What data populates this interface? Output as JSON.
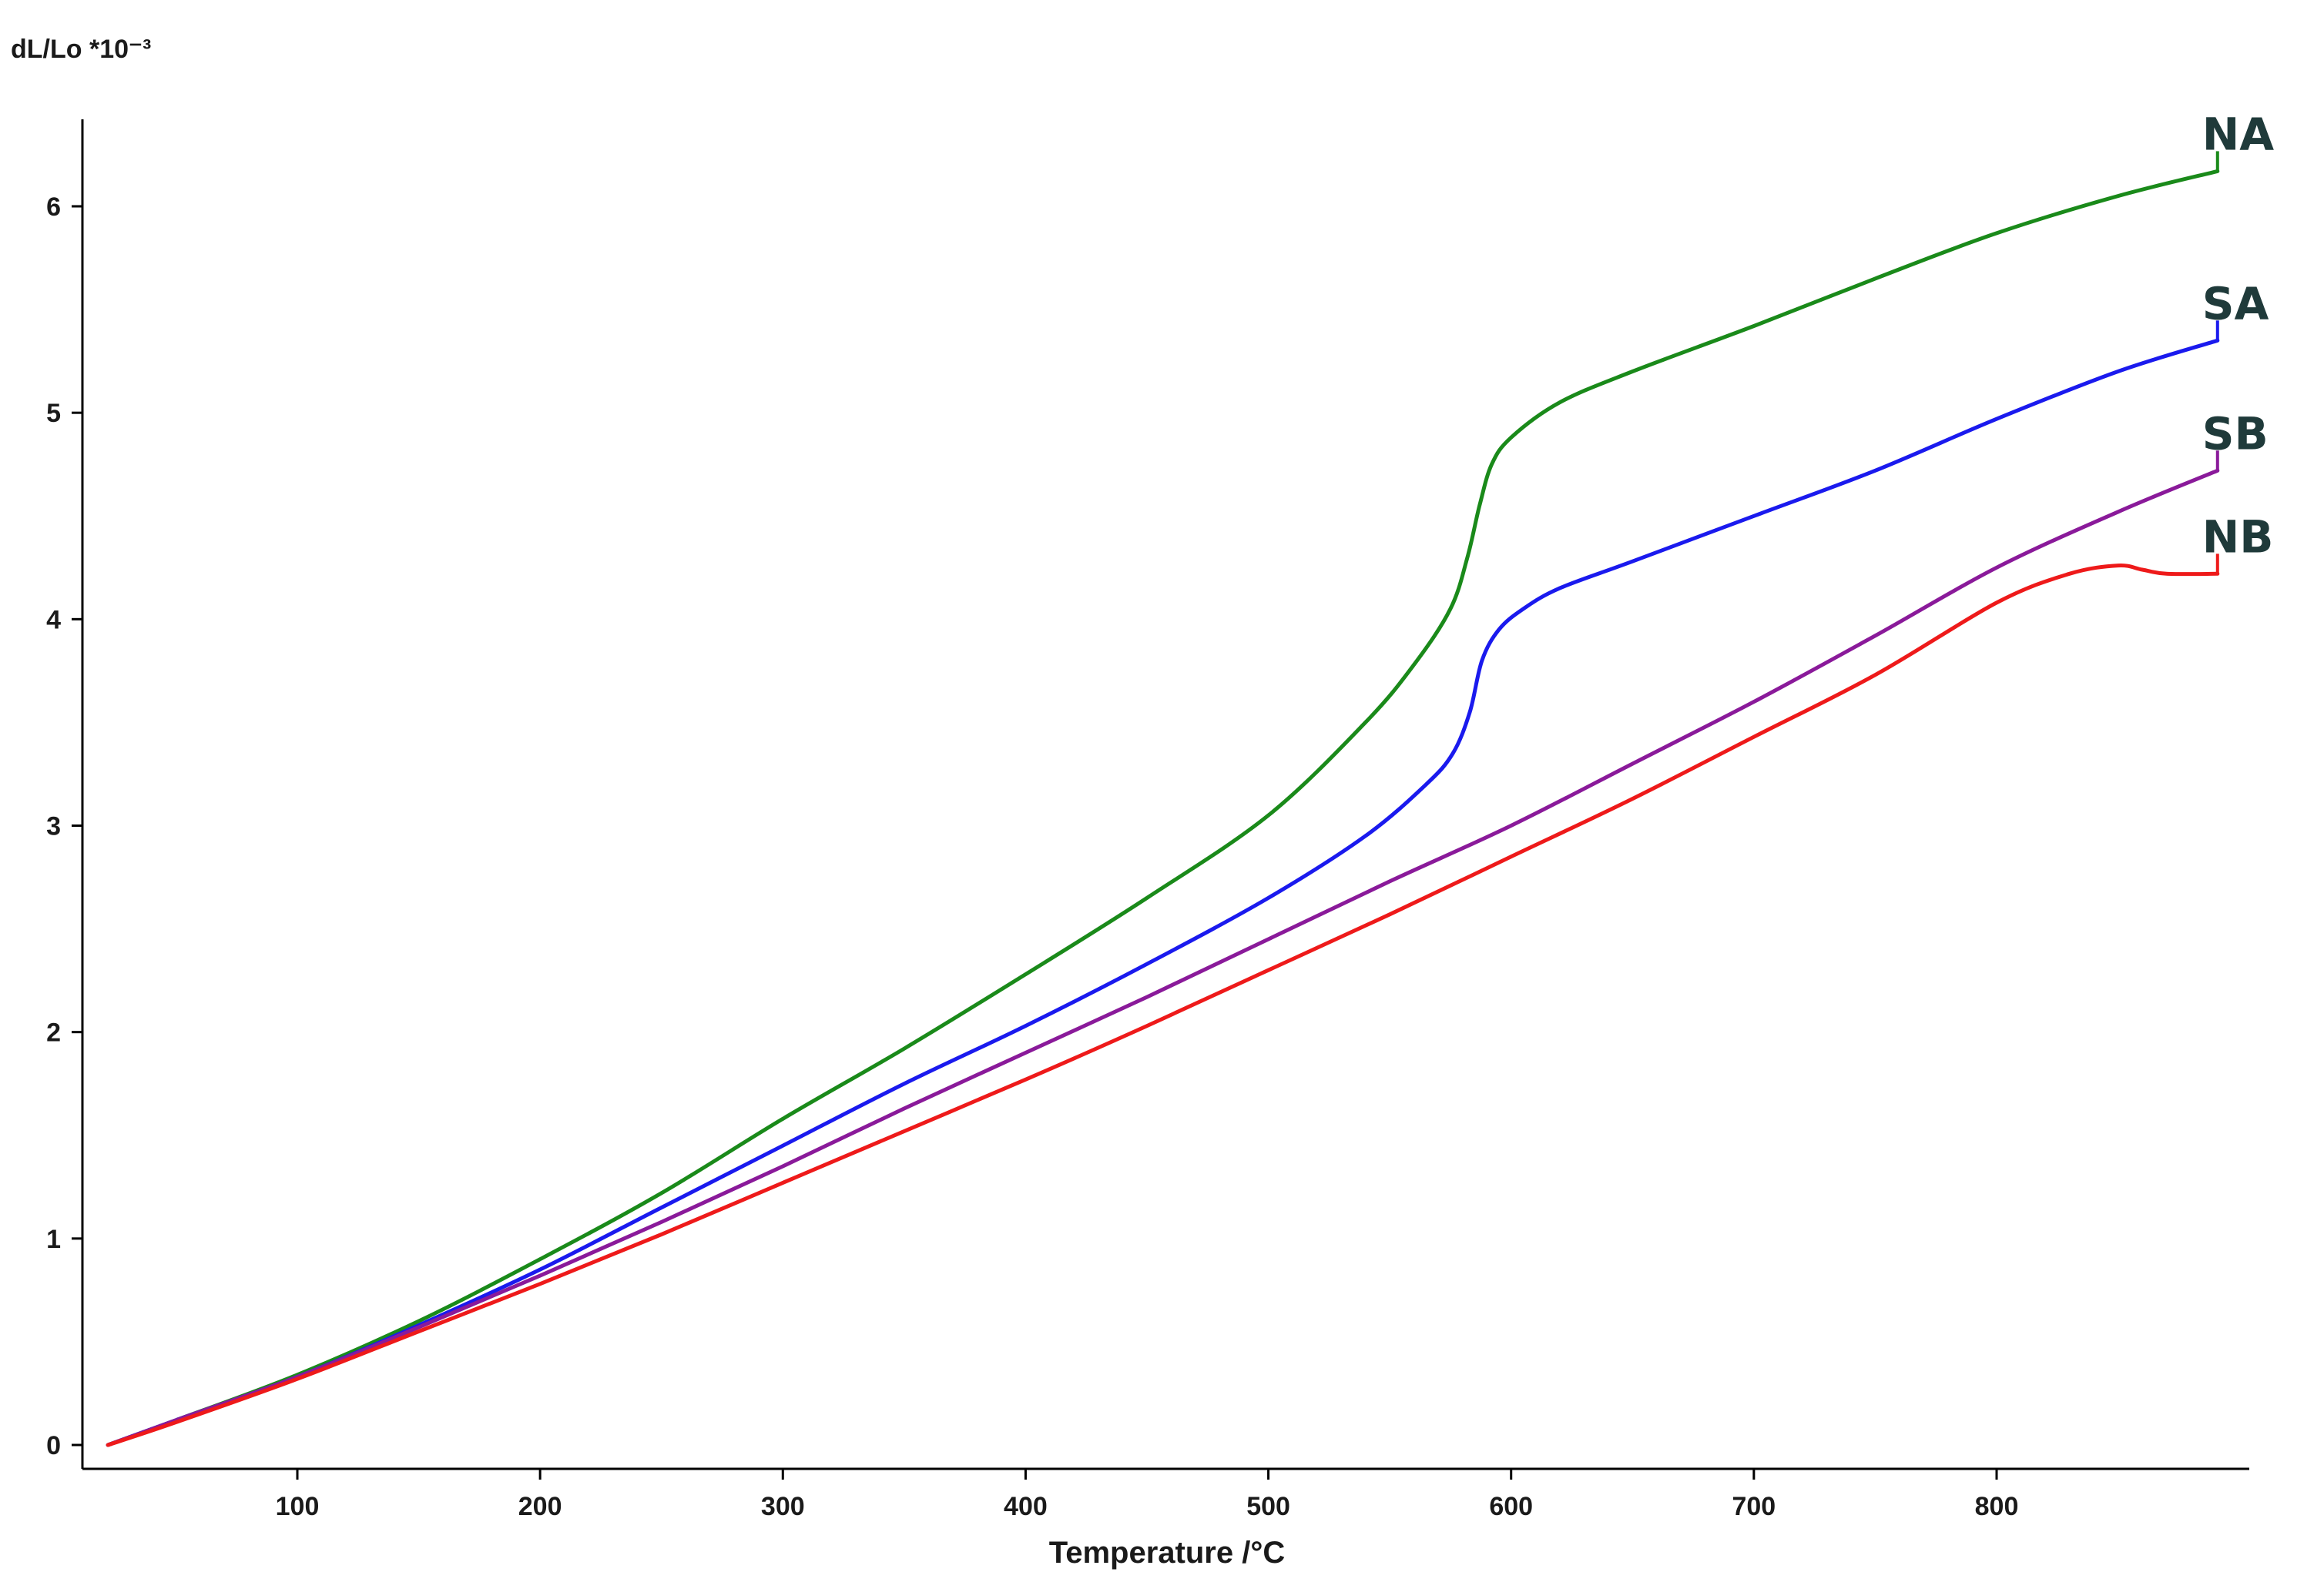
{
  "chart_data": {
    "type": "line",
    "title": "",
    "xlabel": "Temperature /°C",
    "ylabel": "dL/Lo *10⁻³",
    "xlim": [
      20,
      920
    ],
    "ylim": [
      -0.15,
      6.4
    ],
    "x_ticks": [
      100,
      200,
      300,
      400,
      500,
      600,
      700,
      800
    ],
    "x_tick_labels": [
      "100",
      "200",
      "300",
      "400",
      "500",
      "600",
      "700",
      "800"
    ],
    "y_ticks": [
      0,
      1,
      2,
      3,
      4,
      5,
      6
    ],
    "y_tick_labels": [
      "0",
      "1",
      "2",
      "3",
      "4",
      "5",
      "6"
    ],
    "grid": false,
    "legend": "inline labels at right end of lines",
    "series": [
      {
        "name": "NA",
        "color": "#1a8a1a",
        "x": [
          22,
          50,
          100,
          150,
          200,
          250,
          300,
          350,
          400,
          450,
          500,
          540,
          560,
          575,
          582,
          587,
          592,
          600,
          620,
          650,
          700,
          750,
          800,
          850,
          891
        ],
        "y": [
          0,
          0.12,
          0.34,
          0.6,
          0.9,
          1.22,
          1.58,
          1.92,
          2.28,
          2.65,
          3.05,
          3.5,
          3.78,
          4.05,
          4.3,
          4.55,
          4.75,
          4.88,
          5.05,
          5.2,
          5.42,
          5.65,
          5.87,
          6.05,
          6.17
        ]
      },
      {
        "name": "SA",
        "color": "#1a1aee",
        "x": [
          22,
          50,
          100,
          150,
          200,
          250,
          300,
          350,
          400,
          450,
          500,
          540,
          565,
          576,
          583,
          588,
          595,
          605,
          620,
          650,
          700,
          750,
          800,
          850,
          891
        ],
        "y": [
          0,
          0.12,
          0.33,
          0.58,
          0.85,
          1.15,
          1.45,
          1.75,
          2.03,
          2.33,
          2.65,
          2.95,
          3.2,
          3.35,
          3.55,
          3.8,
          3.95,
          4.05,
          4.15,
          4.28,
          4.5,
          4.72,
          4.97,
          5.2,
          5.35
        ]
      },
      {
        "name": "SB",
        "color": "#8a1a9a",
        "x": [
          22,
          50,
          100,
          150,
          200,
          250,
          300,
          350,
          400,
          450,
          500,
          550,
          600,
          650,
          700,
          750,
          800,
          850,
          891
        ],
        "y": [
          0,
          0.12,
          0.33,
          0.57,
          0.82,
          1.08,
          1.35,
          1.63,
          1.9,
          2.17,
          2.45,
          2.73,
          3.0,
          3.3,
          3.6,
          3.92,
          4.25,
          4.52,
          4.72
        ]
      },
      {
        "name": "NB",
        "color": "#ee1a1a",
        "x": [
          22,
          50,
          100,
          150,
          200,
          250,
          300,
          350,
          400,
          450,
          500,
          550,
          600,
          650,
          700,
          750,
          800,
          830,
          850,
          860,
          870,
          891
        ],
        "y": [
          0,
          0.11,
          0.32,
          0.55,
          0.78,
          1.02,
          1.27,
          1.52,
          1.77,
          2.03,
          2.3,
          2.57,
          2.85,
          3.13,
          3.43,
          3.73,
          4.08,
          4.22,
          4.26,
          4.24,
          4.22,
          4.22
        ]
      }
    ]
  }
}
